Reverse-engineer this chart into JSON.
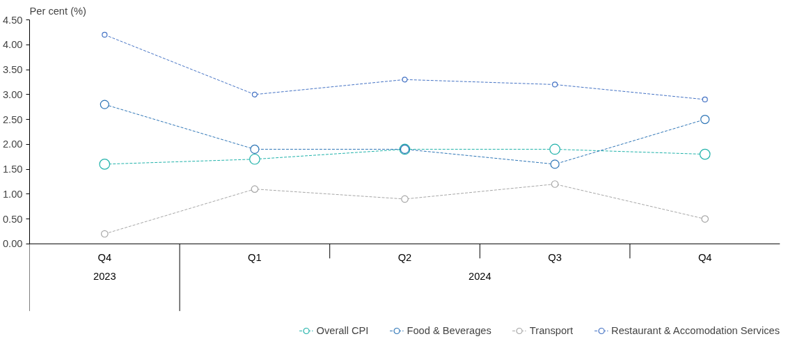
{
  "chart_data": {
    "type": "line",
    "ylabel": "Per cent (%)",
    "categories": [
      "Q4",
      "Q1",
      "Q2",
      "Q3",
      "Q4"
    ],
    "annotations": [
      "2023",
      "2024"
    ],
    "ylim": [
      0,
      4.5
    ],
    "yticks": [
      {
        "value": 0,
        "label": "0.00"
      },
      {
        "value": 0.5,
        "label": "0.50"
      },
      {
        "value": 1,
        "label": "1.00"
      },
      {
        "value": 1.5,
        "label": "1.50"
      },
      {
        "value": 2,
        "label": "2.00"
      },
      {
        "value": 2.5,
        "label": "2.50"
      },
      {
        "value": 3,
        "label": "3.00"
      },
      {
        "value": 3.5,
        "label": "3.50"
      },
      {
        "value": 4,
        "label": "4.00"
      },
      {
        "value": 4.5,
        "label": "4.50"
      }
    ],
    "series": [
      {
        "name": "Overall CPI",
        "color": "#20b2aa",
        "values": [
          1.6,
          1.7,
          1.9,
          1.9,
          1.8
        ]
      },
      {
        "name": "Food & Beverages",
        "color": "#2e75b6",
        "values": [
          2.8,
          1.9,
          1.9,
          1.6,
          2.5
        ]
      },
      {
        "name": "Transport",
        "color": "#a6a6a6",
        "values": [
          0.2,
          1.1,
          0.9,
          1.2,
          0.5
        ]
      },
      {
        "name": "Restaurant & Accomodation Services",
        "color": "#4472c4",
        "values": [
          4.2,
          3.0,
          3.3,
          3.2,
          2.9
        ]
      }
    ],
    "grid": false,
    "legend": "bottom",
    "marker": "circle",
    "line_style": "dashed"
  }
}
